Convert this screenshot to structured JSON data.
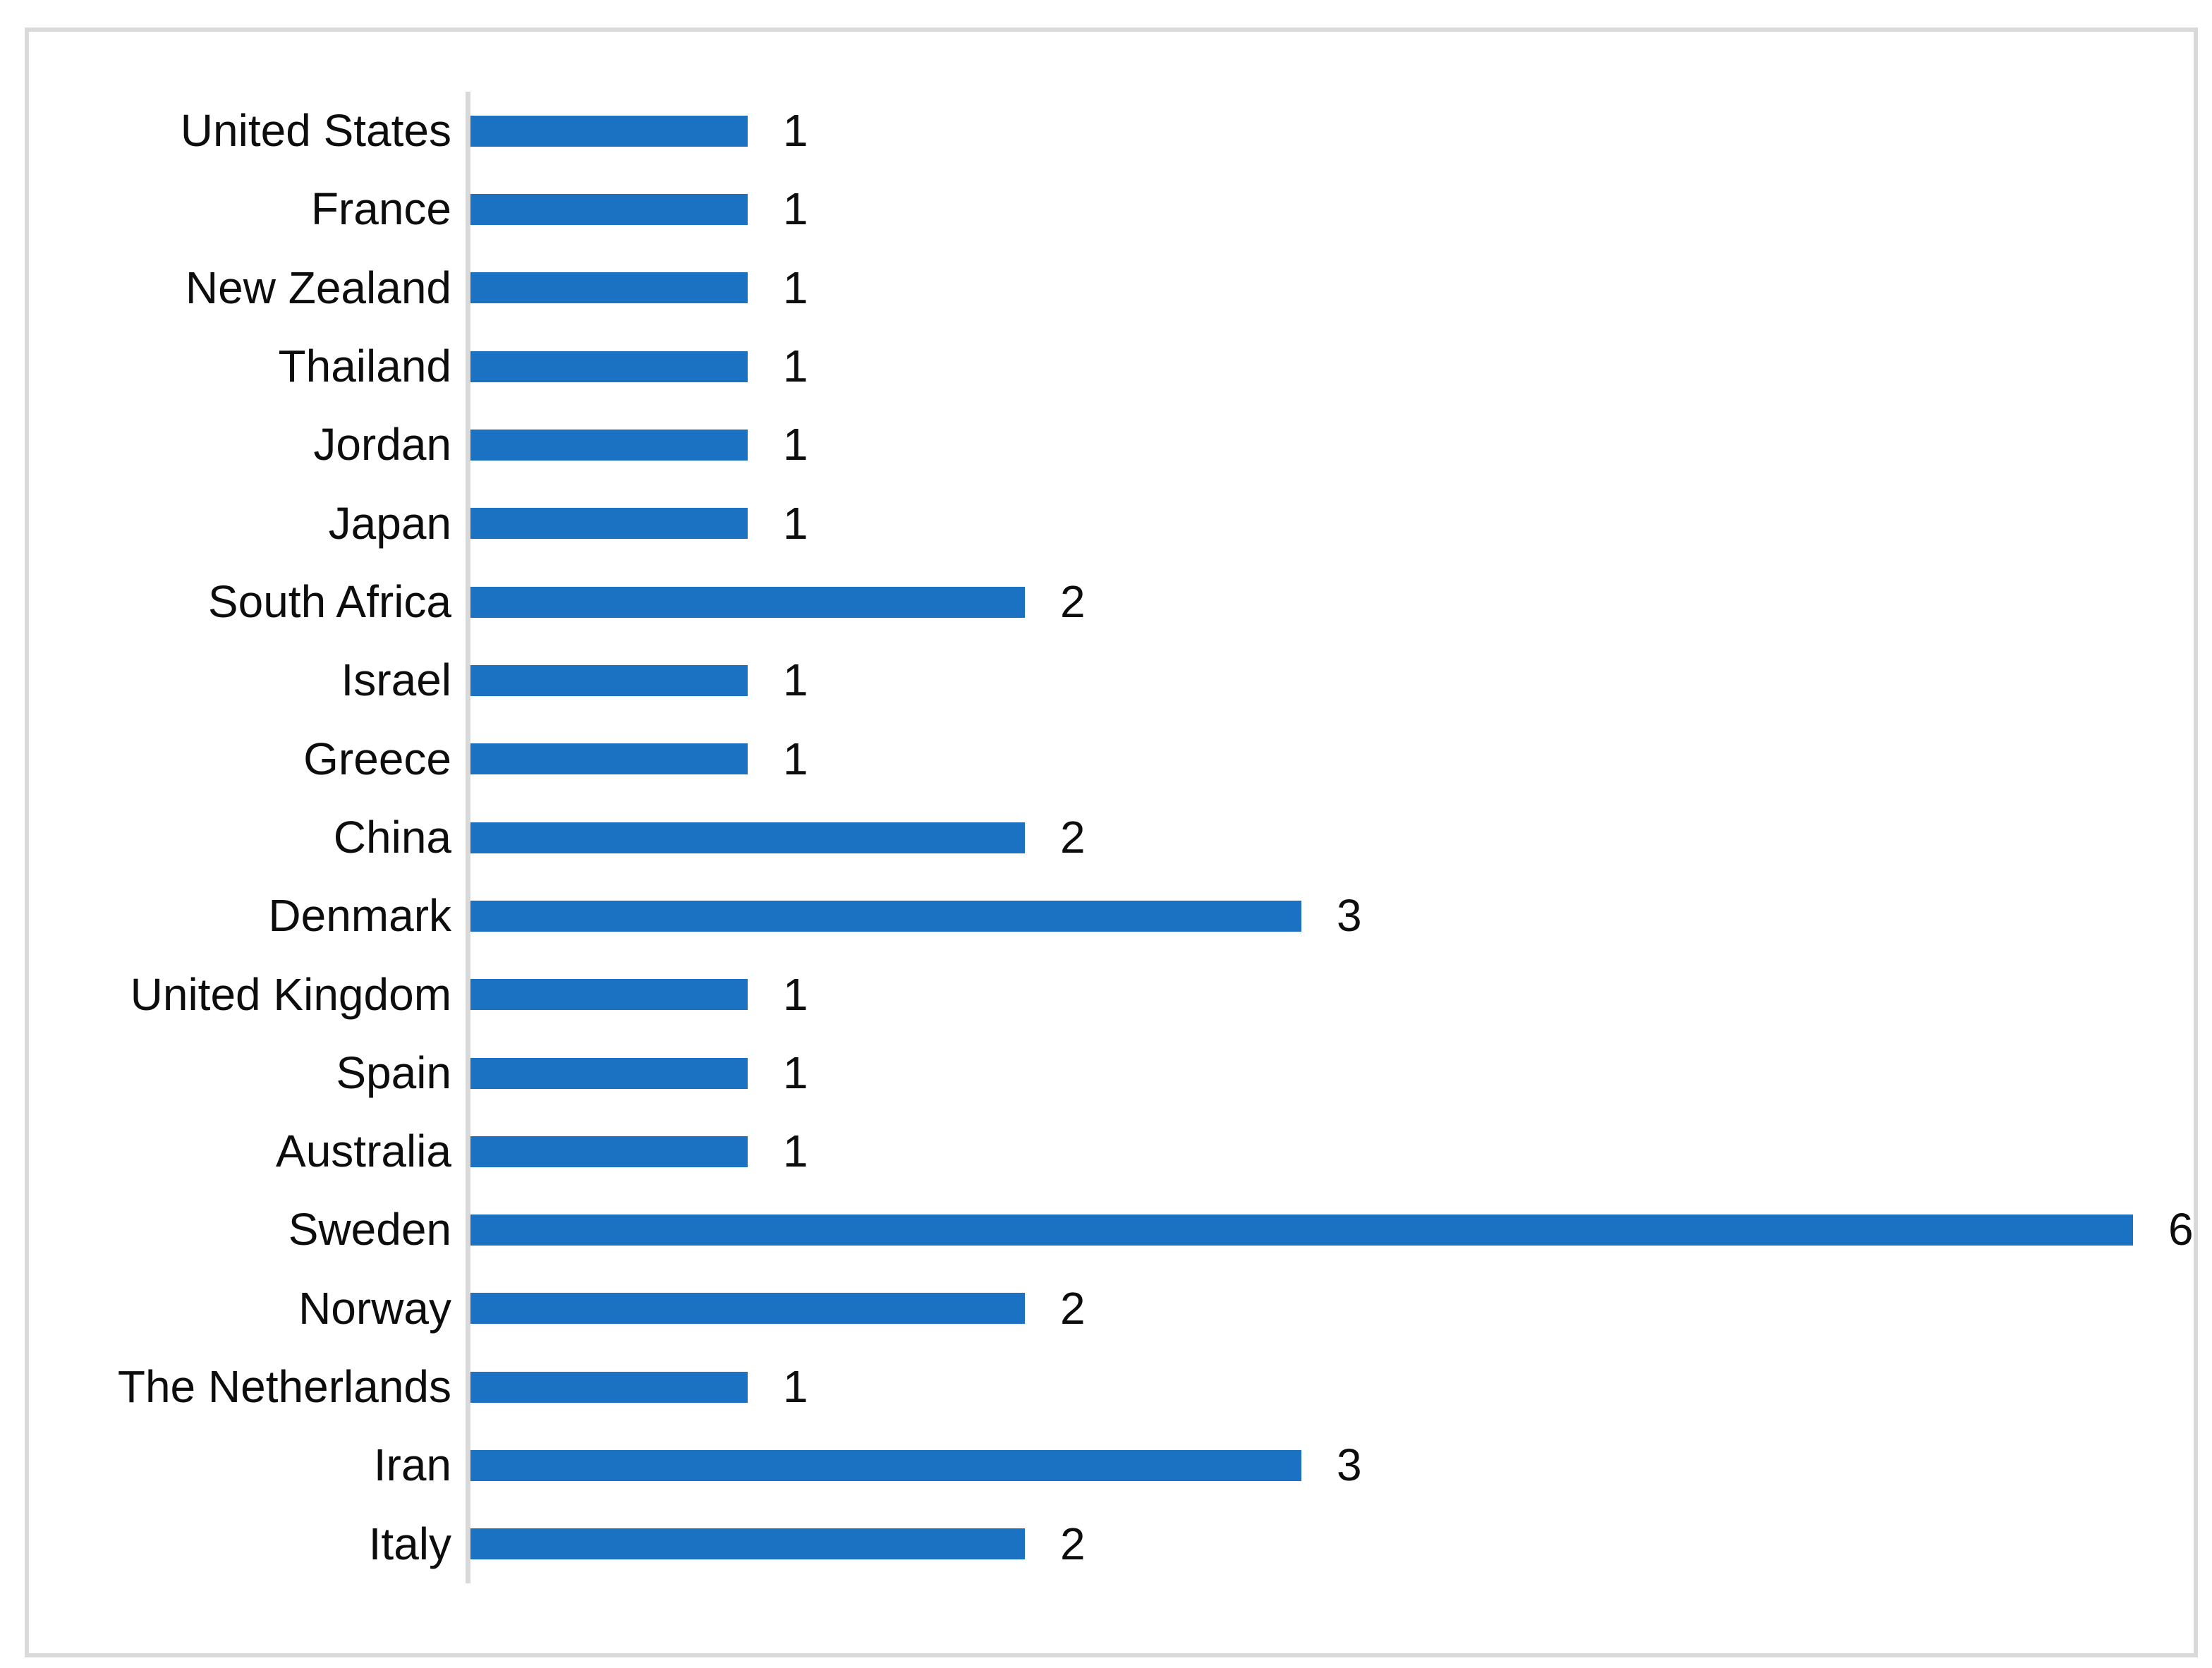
{
  "page": {
    "background_color": "#ffffff",
    "frame_border_color": "#d9d9d9"
  },
  "chart_data": {
    "type": "bar",
    "orientation": "horizontal",
    "title": "",
    "xlabel": "",
    "ylabel": "",
    "categories": [
      "United States",
      "France",
      "New Zealand",
      "Thailand",
      "Jordan",
      "Japan",
      "South Africa",
      "Israel",
      "Greece",
      "China",
      "Denmark",
      "United Kingdom",
      "Spain",
      "Australia",
      "Sweden",
      "Norway",
      "The Netherlands",
      "Iran",
      "Italy"
    ],
    "values": [
      1,
      1,
      1,
      1,
      1,
      1,
      2,
      1,
      1,
      2,
      3,
      1,
      1,
      1,
      6,
      2,
      1,
      3,
      2
    ],
    "data_labels": [
      1,
      1,
      1,
      1,
      1,
      1,
      2,
      1,
      1,
      2,
      3,
      1,
      1,
      1,
      6,
      2,
      1,
      3,
      2
    ],
    "xlim": [
      0,
      6
    ],
    "bar_color": "#1b72c3",
    "axis_line_color": "#d9d9d9",
    "label_text_color": "#0d0d0d",
    "gridlines": "off",
    "legend": "none"
  }
}
